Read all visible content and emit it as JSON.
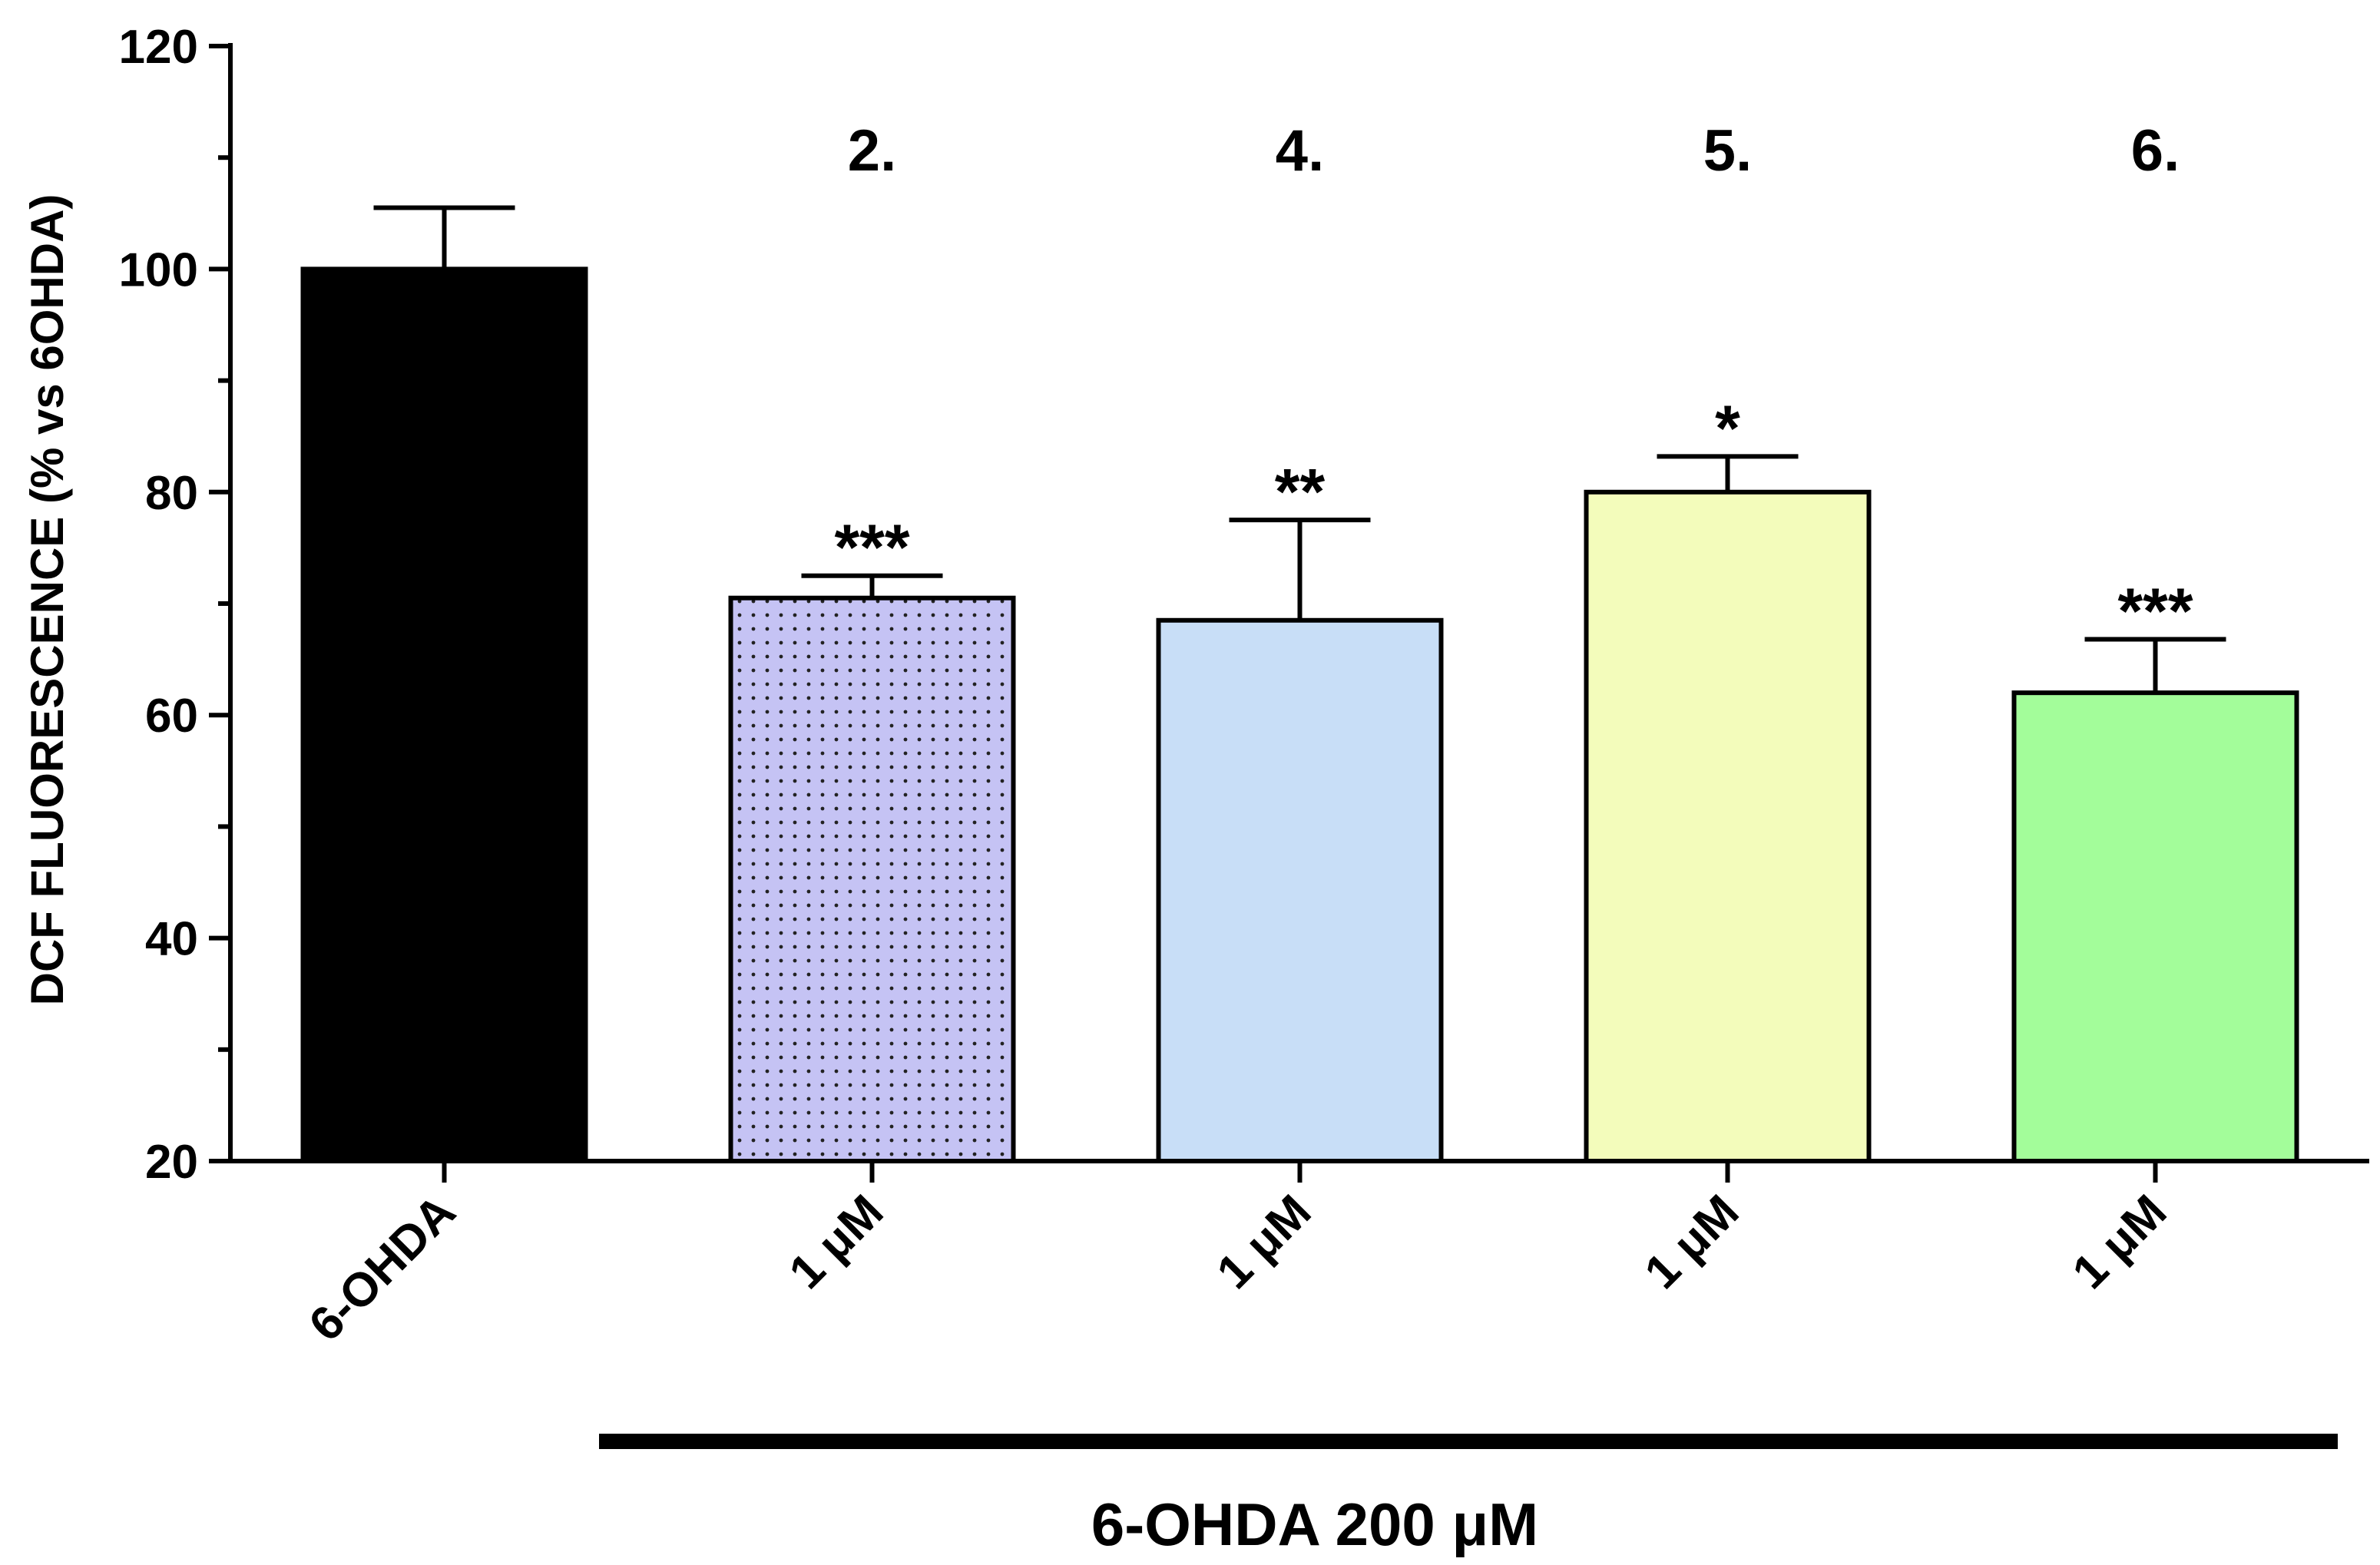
{
  "chart_data": {
    "type": "bar",
    "title": "",
    "ylabel": "DCF FLUORESCENCE (% vs 6OHDA)",
    "xlabel": "",
    "ylim": [
      20,
      120
    ],
    "yticks": [
      20,
      40,
      60,
      80,
      100,
      120
    ],
    "grid": false,
    "categories": [
      "6-OHDA",
      "1 μM",
      "1 μM",
      "1 μM",
      "1 μM"
    ],
    "values": [
      100,
      70.5,
      68.5,
      80,
      62
    ],
    "error": [
      5.5,
      2,
      9,
      3.2,
      4.8
    ],
    "compound_labels": [
      "",
      "2.",
      "4.",
      "5.",
      "6."
    ],
    "significance": [
      "",
      "***",
      "**",
      "*",
      "***"
    ],
    "bar_colors": [
      "#000000",
      "#c5c3f4",
      "#c8def7",
      "#f3fcbb",
      "#a3fd9a"
    ],
    "bar_patterns": [
      "solid",
      "dotted",
      "solid",
      "solid",
      "solid"
    ],
    "group_label": "6-OHDA 200 μM"
  }
}
